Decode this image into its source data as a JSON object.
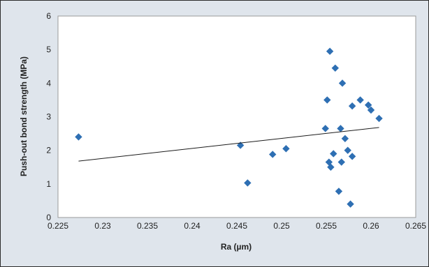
{
  "chart_data": {
    "type": "scatter",
    "title": "",
    "xlabel": "Ra (µm)",
    "ylabel": "Push-out bond strength (MPa)",
    "xlim": [
      0.225,
      0.265
    ],
    "ylim": [
      0,
      6
    ],
    "x_ticks": [
      "0.225",
      "0.23",
      "0.235",
      "0.24",
      "0.245",
      "0.25",
      "0.255",
      "0.26",
      "0.265"
    ],
    "y_ticks": [
      "0",
      "1",
      "2",
      "3",
      "4",
      "5",
      "6"
    ],
    "grid": false,
    "legend": "none",
    "marker": "diamond",
    "marker_color": "#2e6fb3",
    "trendline": {
      "type": "linear",
      "from": [
        0.2273,
        1.68
      ],
      "to": [
        0.2609,
        2.68
      ]
    },
    "series": [
      {
        "points": [
          [
            0.2273,
            2.4
          ],
          [
            0.2454,
            2.15
          ],
          [
            0.2462,
            1.03
          ],
          [
            0.249,
            1.88
          ],
          [
            0.2505,
            2.05
          ],
          [
            0.2549,
            2.65
          ],
          [
            0.2551,
            3.5
          ],
          [
            0.2553,
            1.65
          ],
          [
            0.2554,
            4.95
          ],
          [
            0.2555,
            1.5
          ],
          [
            0.2558,
            1.9
          ],
          [
            0.256,
            4.45
          ],
          [
            0.2564,
            0.78
          ],
          [
            0.2566,
            2.65
          ],
          [
            0.2567,
            1.65
          ],
          [
            0.2568,
            4.0
          ],
          [
            0.2571,
            2.35
          ],
          [
            0.2574,
            2.0
          ],
          [
            0.2577,
            0.4
          ],
          [
            0.2579,
            1.82
          ],
          [
            0.2579,
            3.32
          ],
          [
            0.2588,
            3.5
          ],
          [
            0.2597,
            3.35
          ],
          [
            0.26,
            3.2
          ],
          [
            0.2609,
            2.95
          ]
        ]
      }
    ]
  }
}
